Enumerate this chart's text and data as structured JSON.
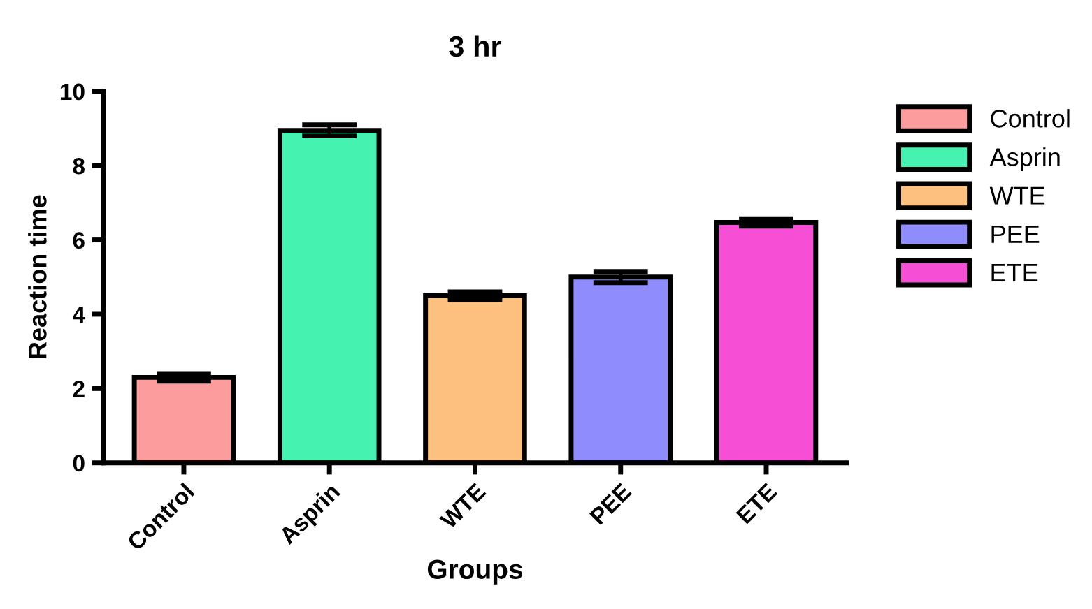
{
  "chart_data": {
    "type": "bar",
    "title": "3 hr",
    "xlabel": "Groups",
    "ylabel": "Reaction time",
    "categories": [
      "Control",
      "Asprin",
      "WTE",
      "PEE",
      "ETE"
    ],
    "series": [
      {
        "name": "Control",
        "color": "#fc9c9c",
        "values": [
          2.3,
          null,
          null,
          null,
          null
        ],
        "errors": [
          0.1,
          null,
          null,
          null,
          null
        ]
      },
      {
        "name": "Asprin",
        "color": "#45f2b0",
        "values": [
          null,
          8.95,
          null,
          null,
          null
        ],
        "errors": [
          null,
          0.15,
          null,
          null,
          null
        ]
      },
      {
        "name": "WTE",
        "color": "#fec07e",
        "values": [
          null,
          null,
          4.5,
          null,
          null
        ],
        "errors": [
          null,
          null,
          0.1,
          null,
          null
        ]
      },
      {
        "name": "PEE",
        "color": "#8f8cfd",
        "values": [
          null,
          null,
          null,
          5.0,
          null
        ],
        "errors": [
          null,
          null,
          null,
          0.15,
          null
        ]
      },
      {
        "name": "ETE",
        "color": "#f64fd6",
        "values": [
          null,
          null,
          null,
          null,
          6.47
        ],
        "errors": [
          null,
          null,
          null,
          null,
          0.1
        ]
      }
    ],
    "ylim": [
      0,
      10
    ],
    "yticks": [
      0,
      2,
      4,
      6,
      8,
      10
    ],
    "grid": false,
    "legend": "right"
  }
}
